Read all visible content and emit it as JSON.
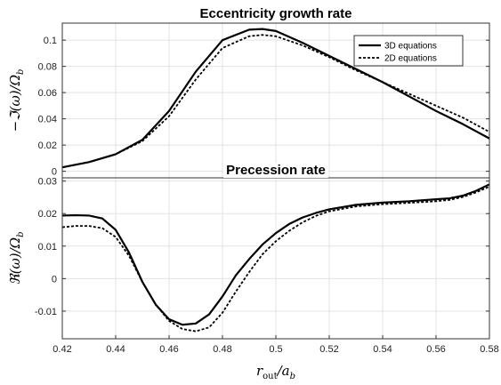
{
  "chart_data": [
    {
      "type": "line",
      "title": "Eccentricity growth rate",
      "ylabel": "−ℑ(ω)/Ω",
      "ylabel_sub": "b",
      "xlim": [
        0.42,
        0.58
      ],
      "ylim": [
        -0.005,
        0.113
      ],
      "yticks": [
        0,
        0.02,
        0.04,
        0.06,
        0.08,
        0.1
      ],
      "ytick_labels": [
        "0",
        "0.02",
        "0.04",
        "0.06",
        "0.08",
        "0.1"
      ],
      "legend": {
        "placement": "top-right",
        "entries": [
          "3D equations",
          "2D equations"
        ]
      },
      "grid": true,
      "series": [
        {
          "name": "3D equations",
          "style": "solid",
          "x": [
            0.42,
            0.43,
            0.44,
            0.45,
            0.46,
            0.47,
            0.48,
            0.49,
            0.495,
            0.5,
            0.51,
            0.52,
            0.53,
            0.54,
            0.55,
            0.56,
            0.57,
            0.58
          ],
          "y": [
            0.003,
            0.007,
            0.013,
            0.024,
            0.046,
            0.076,
            0.1,
            0.108,
            0.1085,
            0.107,
            0.098,
            0.088,
            0.078,
            0.068,
            0.057,
            0.046,
            0.036,
            0.025
          ]
        },
        {
          "name": "2D equations",
          "style": "dashed",
          "x": [
            0.42,
            0.43,
            0.44,
            0.45,
            0.46,
            0.47,
            0.48,
            0.49,
            0.495,
            0.5,
            0.51,
            0.52,
            0.53,
            0.54,
            0.55,
            0.56,
            0.57,
            0.58
          ],
          "y": [
            0.003,
            0.007,
            0.013,
            0.023,
            0.042,
            0.07,
            0.094,
            0.103,
            0.104,
            0.103,
            0.096,
            0.087,
            0.077,
            0.068,
            0.059,
            0.05,
            0.041,
            0.03
          ]
        }
      ]
    },
    {
      "type": "line",
      "title": "Precession rate",
      "ylabel": "ℜ(ω)/Ω",
      "ylabel_sub": "b",
      "xlabel": "r",
      "xlabel_sub": "out",
      "xlabel_rest": "/a",
      "xlabel_rest_sub": "b",
      "xlim": [
        0.42,
        0.58
      ],
      "ylim": [
        -0.0185,
        0.031
      ],
      "xticks": [
        0.42,
        0.44,
        0.46,
        0.48,
        0.5,
        0.52,
        0.54,
        0.56,
        0.58
      ],
      "xtick_labels": [
        "0.42",
        "0.44",
        "0.46",
        "0.48",
        "0.5",
        "0.52",
        "0.54",
        "0.56",
        "0.58"
      ],
      "yticks": [
        -0.01,
        0,
        0.01,
        0.02,
        0.03
      ],
      "ytick_labels": [
        "-0.01",
        "0",
        "0.01",
        "0.02",
        "0.03"
      ],
      "grid": true,
      "series": [
        {
          "name": "3D equations",
          "style": "solid",
          "x": [
            0.42,
            0.425,
            0.43,
            0.435,
            0.44,
            0.445,
            0.45,
            0.455,
            0.46,
            0.465,
            0.47,
            0.475,
            0.48,
            0.485,
            0.49,
            0.495,
            0.5,
            0.505,
            0.51,
            0.515,
            0.52,
            0.53,
            0.54,
            0.55,
            0.56,
            0.565,
            0.57,
            0.575,
            0.58
          ],
          "y": [
            0.0194,
            0.0195,
            0.0194,
            0.0185,
            0.015,
            0.008,
            -0.001,
            -0.008,
            -0.0125,
            -0.0142,
            -0.0138,
            -0.011,
            -0.0055,
            0.001,
            0.006,
            0.0105,
            0.014,
            0.0168,
            0.0188,
            0.0202,
            0.0213,
            0.0227,
            0.0234,
            0.0238,
            0.0244,
            0.0247,
            0.0255,
            0.027,
            0.029
          ]
        },
        {
          "name": "2D equations",
          "style": "dashed",
          "x": [
            0.42,
            0.425,
            0.43,
            0.435,
            0.44,
            0.445,
            0.45,
            0.455,
            0.46,
            0.465,
            0.47,
            0.475,
            0.48,
            0.485,
            0.49,
            0.495,
            0.5,
            0.505,
            0.51,
            0.515,
            0.52,
            0.53,
            0.54,
            0.55,
            0.56,
            0.565,
            0.57,
            0.575,
            0.58
          ],
          "y": [
            0.0158,
            0.0162,
            0.0162,
            0.0155,
            0.0128,
            0.007,
            -0.001,
            -0.008,
            -0.013,
            -0.0155,
            -0.0162,
            -0.015,
            -0.0105,
            -0.004,
            0.002,
            0.0075,
            0.0115,
            0.0147,
            0.0173,
            0.0193,
            0.0207,
            0.0222,
            0.0229,
            0.0233,
            0.0238,
            0.0242,
            0.0251,
            0.0265,
            0.0283
          ]
        }
      ]
    }
  ]
}
